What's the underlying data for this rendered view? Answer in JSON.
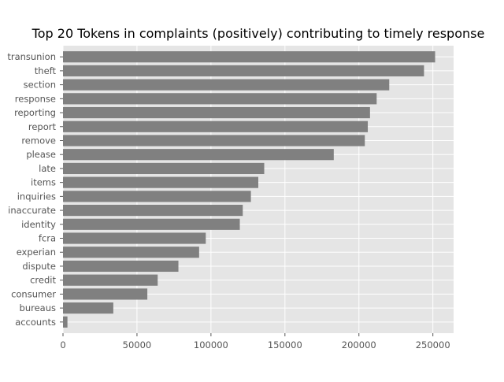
{
  "chart_data": {
    "type": "bar",
    "orientation": "horizontal",
    "title": "Top 20 Tokens in complaints (positively) contributing to timely response",
    "xlabel": "",
    "ylabel": "",
    "categories": [
      "accounts",
      "bureaus",
      "consumer",
      "credit",
      "dispute",
      "experian",
      "fcra",
      "identity",
      "inaccurate",
      "inquiries",
      "items",
      "late",
      "please",
      "remove",
      "report",
      "reporting",
      "response",
      "section",
      "theft",
      "transunion"
    ],
    "values": [
      3000,
      34000,
      57000,
      64000,
      78000,
      92000,
      96500,
      119500,
      121500,
      127000,
      132000,
      136000,
      183000,
      204000,
      206000,
      207500,
      212000,
      220500,
      244000,
      251500
    ],
    "xlim": [
      0,
      264000
    ],
    "xticks": [
      0,
      50000,
      100000,
      150000,
      200000,
      250000
    ],
    "xtick_labels": [
      "0",
      "50000",
      "100000",
      "150000",
      "200000",
      "250000"
    ],
    "grid": true,
    "style": "ggplot",
    "bar_color": "#808080",
    "background_color": "#e5e5e5",
    "grid_color": "#ffffff"
  }
}
